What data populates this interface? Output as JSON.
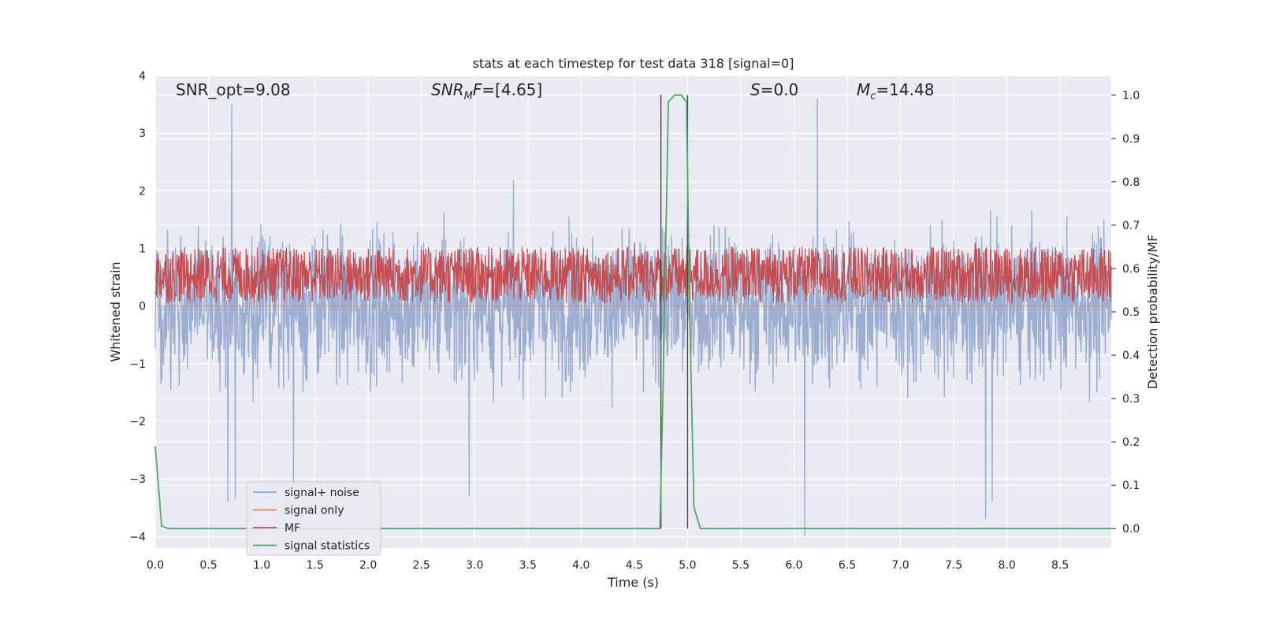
{
  "chart_data": {
    "type": "line",
    "title": "stats at each timestep for test data 318 [signal=0]",
    "xlabel": "Time (s)",
    "ylabel_left": "Whitened strain",
    "ylabel_right": "Detection probability/MF",
    "xlim": [
      0.0,
      8.98
    ],
    "ylim_left": [
      -4.2,
      4.0
    ],
    "ylim_right": [
      -0.045,
      1.045
    ],
    "x_ticks": [
      "0.0",
      "0.5",
      "1.0",
      "1.5",
      "2.0",
      "2.5",
      "3.0",
      "3.5",
      "4.0",
      "4.5",
      "5.0",
      "5.5",
      "6.0",
      "6.5",
      "7.0",
      "7.5",
      "8.0",
      "8.5"
    ],
    "y_ticks_left": [
      "−4",
      "−3",
      "−2",
      "−1",
      "0",
      "1",
      "2",
      "3",
      "4"
    ],
    "y_ticks_right": [
      "0.0",
      "0.1",
      "0.2",
      "0.3",
      "0.4",
      "0.5",
      "0.6",
      "0.7",
      "0.8",
      "0.9",
      "1.0"
    ],
    "grid": true,
    "background": "#eaeaf2",
    "annotations": {
      "snr_opt": "SNR_opt=9.08",
      "snr_mf": "=[4.65]",
      "s": "=0.0",
      "mc": "=14.48"
    },
    "vlines_x": [
      4.75,
      5.0
    ],
    "series": [
      {
        "name": "signal+ noise",
        "axis": "left",
        "color": "#4c72b0",
        "alpha": 0.5,
        "approx_range": [
          -2.1,
          2.1
        ],
        "peak_spikes": [
          [
            0.72,
            3.5
          ],
          [
            0.68,
            -3.4
          ],
          [
            0.75,
            -3.35
          ],
          [
            1.3,
            -3.1
          ],
          [
            2.95,
            -3.3
          ],
          [
            6.1,
            -4.0
          ],
          [
            6.22,
            3.6
          ],
          [
            7.8,
            -3.7
          ],
          [
            7.86,
            -3.4
          ]
        ]
      },
      {
        "name": "signal only",
        "axis": "left",
        "color": "#dd8452",
        "values_constant": 0.0
      },
      {
        "name": "MF",
        "axis": "right",
        "color": "#c44e52",
        "approx_range": [
          0.52,
          0.65
        ],
        "peak_spikes": [
          [
            4.5,
            0.66
          ],
          [
            7.7,
            0.66
          ]
        ]
      },
      {
        "name": "signal statistics",
        "axis": "right",
        "color": "#55a868",
        "x": [
          0.0,
          0.06,
          0.12,
          4.5,
          4.74,
          4.77,
          4.82,
          4.88,
          4.94,
          4.99,
          5.02,
          5.06,
          5.12,
          8.98
        ],
        "y": [
          0.19,
          0.006,
          0.0,
          0.0,
          0.0,
          0.32,
          0.985,
          1.0,
          1.0,
          0.985,
          0.5,
          0.05,
          0.0,
          0.0
        ]
      }
    ],
    "legend": {
      "position": "lower-left",
      "entries": [
        {
          "label": "signal+ noise",
          "color": "#4c72b0"
        },
        {
          "label": "signal only",
          "color": "#dd8452"
        },
        {
          "label": "MF",
          "color": "#c44e52"
        },
        {
          "label": "signal statistics",
          "color": "#55a868"
        }
      ]
    }
  }
}
